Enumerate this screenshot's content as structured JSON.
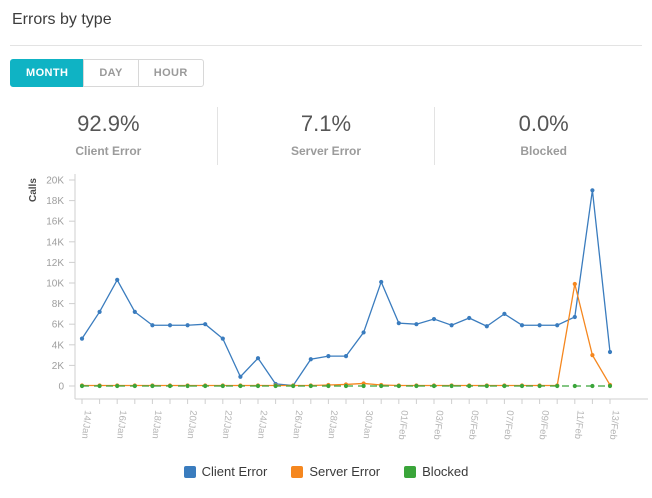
{
  "header": {
    "title": "Errors by type"
  },
  "tabs": [
    {
      "label": "MONTH",
      "active": true
    },
    {
      "label": "DAY",
      "active": false
    },
    {
      "label": "HOUR",
      "active": false
    }
  ],
  "stats": [
    {
      "value": "92.9%",
      "label": "Client Error"
    },
    {
      "value": "7.1%",
      "label": "Server Error"
    },
    {
      "value": "0.0%",
      "label": "Blocked"
    }
  ],
  "legend": [
    {
      "label": "Client Error",
      "color": "#3a7cbe"
    },
    {
      "label": "Server Error",
      "color": "#f5871f"
    },
    {
      "label": "Blocked",
      "color": "#3aa53a"
    }
  ],
  "colors": {
    "accent": "#0fb3c4",
    "divider": "#e3e3e3",
    "axis": "#cfcfcf",
    "tick_label": "#9e9e9e",
    "x_label": "#b5b5b5"
  },
  "chart_data": {
    "type": "line",
    "title": "",
    "xlabel": "",
    "ylabel": "Calls",
    "ylim": [
      0,
      20000
    ],
    "ytick_step": 2000,
    "grid": false,
    "legend_position": "bottom",
    "x_tick_labels_shown_every": 2,
    "x": [
      "14/Jan",
      "15/Jan",
      "16/Jan",
      "17/Jan",
      "18/Jan",
      "19/Jan",
      "20/Jan",
      "21/Jan",
      "22/Jan",
      "23/Jan",
      "24/Jan",
      "25/Jan",
      "26/Jan",
      "27/Jan",
      "28/Jan",
      "29/Jan",
      "30/Jan",
      "31/Jan",
      "01/Feb",
      "02/Feb",
      "03/Feb",
      "04/Feb",
      "05/Feb",
      "06/Feb",
      "07/Feb",
      "08/Feb",
      "09/Feb",
      "10/Feb",
      "11/Feb",
      "12/Feb",
      "13/Feb"
    ],
    "series": [
      {
        "name": "Client Error",
        "color": "#3a7cbe",
        "style": "solid",
        "values": [
          4600,
          7200,
          10300,
          7200,
          5900,
          5900,
          5900,
          6000,
          4600,
          900,
          2700,
          200,
          50,
          2600,
          2900,
          2900,
          5200,
          10100,
          6100,
          6000,
          6500,
          5900,
          6600,
          5800,
          7000,
          5900,
          5900,
          5900,
          6700,
          19000,
          3300
        ]
      },
      {
        "name": "Server Error",
        "color": "#f5871f",
        "style": "solid",
        "values": [
          50,
          50,
          50,
          50,
          50,
          50,
          50,
          50,
          50,
          50,
          50,
          50,
          50,
          50,
          100,
          150,
          250,
          100,
          50,
          50,
          50,
          50,
          50,
          50,
          50,
          50,
          50,
          50,
          9900,
          3000,
          100
        ]
      },
      {
        "name": "Blocked",
        "color": "#3aa53a",
        "style": "dashed",
        "values": [
          0,
          0,
          0,
          0,
          0,
          0,
          0,
          0,
          0,
          0,
          0,
          0,
          0,
          0,
          0,
          0,
          0,
          0,
          0,
          0,
          0,
          0,
          0,
          0,
          0,
          0,
          0,
          0,
          0,
          0,
          0
        ]
      }
    ]
  }
}
